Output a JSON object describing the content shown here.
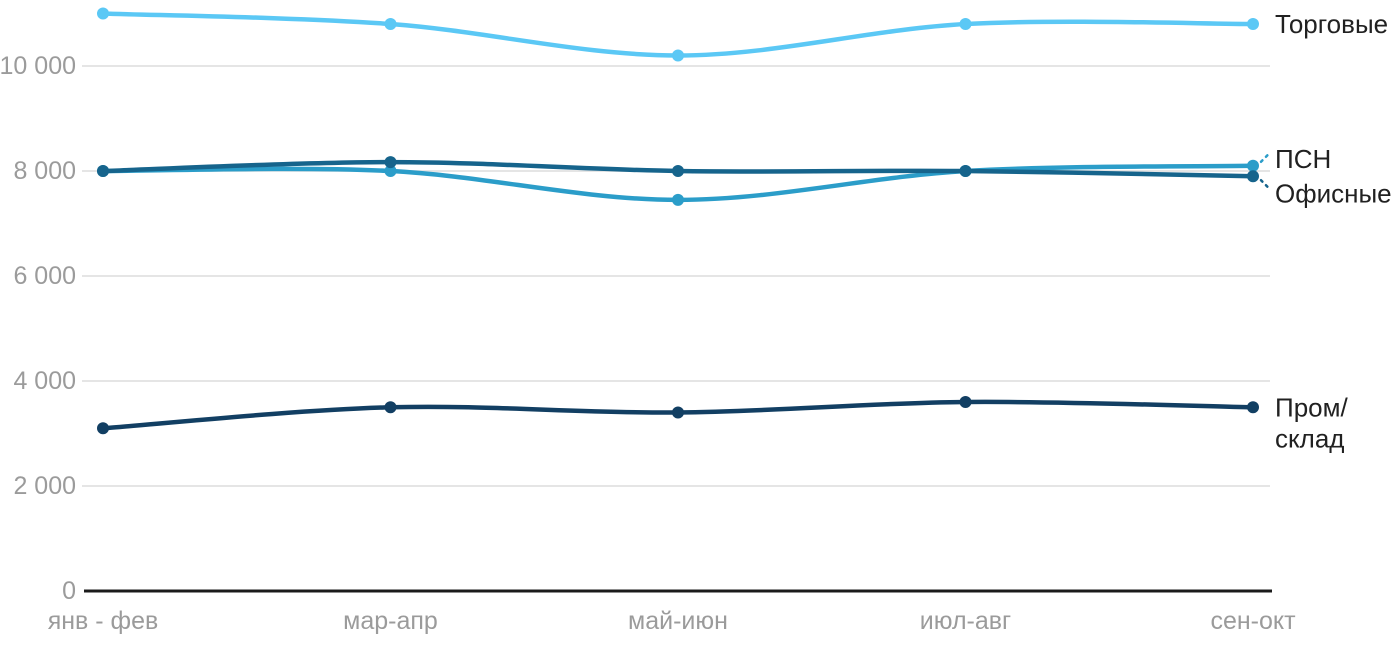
{
  "chart_data": {
    "type": "line",
    "title": "",
    "xlabel": "",
    "ylabel": "",
    "categories": [
      "янв - фев",
      "мар-апр",
      "май-июн",
      "июл-авг",
      "сен-окт"
    ],
    "series": [
      {
        "name": "Торговые",
        "color": "#5bc8f5",
        "values": [
          11000,
          10800,
          10200,
          10800,
          10800
        ],
        "label_leader": "none"
      },
      {
        "name": "ПСН",
        "color": "#2b9dc9",
        "values": [
          8000,
          8000,
          7450,
          8000,
          8100
        ],
        "label_leader": "up"
      },
      {
        "name": "Офисные",
        "color": "#16648c",
        "values": [
          8000,
          8170,
          8000,
          8000,
          7900
        ],
        "label_leader": "down"
      },
      {
        "name": "Пром/склад",
        "color": "#123f63",
        "values": [
          3100,
          3500,
          3400,
          3600,
          3500
        ],
        "label_leader": "none",
        "label_lines": [
          "Пром/",
          "склад"
        ]
      }
    ],
    "yticks": [
      0,
      2000,
      4000,
      6000,
      8000,
      10000
    ],
    "ytick_labels": [
      "0",
      "2 000",
      "4 000",
      "6 000",
      "8 000",
      "10 000"
    ],
    "ylim": [
      0,
      11400
    ],
    "grid": true,
    "legend_position": "right-inline",
    "style": {
      "grid_color": "#e5e5e5",
      "axis_line_color": "#1b1b1b",
      "tick_label_color": "#9b9b9b",
      "series_label_color": "#212121",
      "background": "#ffffff"
    }
  }
}
